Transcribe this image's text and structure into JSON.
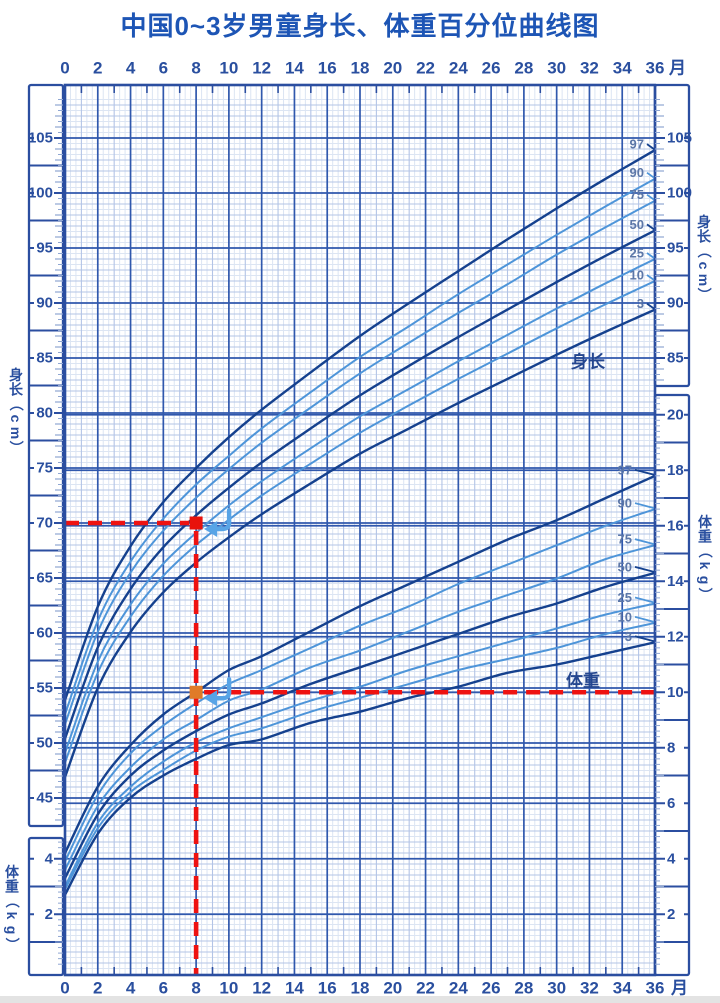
{
  "title": "中国0~3岁男童身长、体重百分位曲线图",
  "axes": {
    "month_ticks": [
      0,
      2,
      4,
      6,
      8,
      10,
      12,
      14,
      16,
      18,
      20,
      22,
      24,
      26,
      28,
      30,
      32,
      34,
      36
    ],
    "month_unit": "月",
    "left_height": {
      "title": "身长（cm）",
      "ticks": [
        105,
        100,
        95,
        90,
        85,
        80,
        75,
        70,
        65,
        60,
        55,
        50,
        45
      ]
    },
    "left_weight": {
      "title": "体重（kg）",
      "ticks": [
        4,
        2
      ]
    },
    "right_height": {
      "title": "身长（cm）",
      "ticks": [
        105,
        100,
        95,
        90,
        85
      ]
    },
    "right_weight": {
      "title": "体重（kg）",
      "ticks": [
        20,
        18,
        16,
        14,
        12,
        10,
        8,
        6,
        4,
        2
      ]
    }
  },
  "in_chart_labels": {
    "height": "身长",
    "weight": "体重"
  },
  "colors": {
    "title_blue": "#1d55b5",
    "axis_blue": "#2b4ea0",
    "label_blue": "#2a4f9f",
    "major_grid": "#3058ad",
    "medium_grid": "#b3c4e6",
    "fine_grid": "#dce5f3",
    "curve_dark": "#15418e",
    "curve_light": "#4e95d9",
    "percentile_label": "#5c77a8",
    "reference_red": "#ee1211",
    "marker_red": "#e8120c",
    "marker_orange": "#e07b28",
    "arrow_blue": "#58a4e6"
  },
  "chart_data": {
    "type": "line",
    "title": "中国0~3岁男童身长、体重百分位曲线图",
    "x_label_unit": "月",
    "x_range": [
      0,
      36
    ],
    "height_axis": {
      "label": "身长（cm）",
      "range": [
        45,
        105
      ],
      "major_step": 5
    },
    "weight_axis": {
      "label": "体重（kg）",
      "range": [
        2,
        20
      ],
      "major_step": 2
    },
    "grid": "on",
    "percentile_labels": [
      "97",
      "90",
      "75",
      "50",
      "25",
      "10",
      "3"
    ],
    "x_months": [
      0,
      2,
      4,
      6,
      8,
      10,
      12,
      15,
      18,
      21,
      24,
      27,
      30,
      33,
      36
    ],
    "height_series": [
      {
        "name": "97",
        "shade": "dark",
        "values": [
          53.9,
          62.4,
          67.9,
          71.9,
          75.0,
          77.8,
          80.3,
          83.7,
          87.0,
          90.0,
          92.9,
          95.8,
          98.6,
          101.3,
          103.9
        ]
      },
      {
        "name": "90",
        "shade": "light",
        "values": [
          52.6,
          61.1,
          66.5,
          70.4,
          73.5,
          76.1,
          78.6,
          81.9,
          85.1,
          87.9,
          90.8,
          93.5,
          96.2,
          98.8,
          101.3
        ]
      },
      {
        "name": "75",
        "shade": "light",
        "values": [
          51.7,
          60.1,
          65.5,
          69.3,
          72.3,
          74.9,
          77.3,
          80.5,
          83.6,
          86.4,
          89.1,
          91.7,
          94.4,
          96.9,
          99.3
        ]
      },
      {
        "name": "50",
        "shade": "dark",
        "values": [
          50.4,
          58.7,
          64.0,
          67.8,
          70.7,
          73.2,
          75.5,
          78.6,
          81.6,
          84.3,
          86.9,
          89.4,
          91.9,
          94.3,
          96.6
        ]
      },
      {
        "name": "25",
        "shade": "light",
        "values": [
          49.1,
          57.4,
          62.6,
          66.3,
          69.1,
          71.6,
          73.8,
          76.8,
          79.7,
          82.2,
          84.7,
          87.1,
          89.5,
          91.8,
          94.0
        ]
      },
      {
        "name": "10",
        "shade": "light",
        "values": [
          48.2,
          56.4,
          61.5,
          65.2,
          68.0,
          70.3,
          72.5,
          75.4,
          78.2,
          80.7,
          83.1,
          85.4,
          87.7,
          89.9,
          92.0
        ]
      },
      {
        "name": "3",
        "shade": "dark",
        "values": [
          46.9,
          55.0,
          60.1,
          63.7,
          66.4,
          68.7,
          70.8,
          73.6,
          76.3,
          78.6,
          80.9,
          83.1,
          85.3,
          87.4,
          89.4
        ]
      }
    ],
    "weight_series": [
      {
        "name": "97",
        "shade": "dark",
        "values": [
          4.2,
          6.6,
          8.1,
          9.2,
          10.0,
          10.8,
          11.3,
          12.2,
          13.1,
          13.9,
          14.7,
          15.5,
          16.2,
          17.0,
          17.8
        ]
      },
      {
        "name": "90",
        "shade": "light",
        "values": [
          3.9,
          6.3,
          7.8,
          8.8,
          9.6,
          10.3,
          10.8,
          11.6,
          12.4,
          13.1,
          13.9,
          14.6,
          15.3,
          16.0,
          16.6
        ]
      },
      {
        "name": "75",
        "shade": "light",
        "values": [
          3.6,
          5.9,
          7.3,
          8.3,
          9.0,
          9.7,
          10.1,
          10.9,
          11.5,
          12.2,
          12.9,
          13.5,
          14.1,
          14.8,
          15.3
        ]
      },
      {
        "name": "50",
        "shade": "dark",
        "values": [
          3.3,
          5.6,
          7.0,
          7.9,
          8.6,
          9.2,
          9.6,
          10.3,
          10.9,
          11.5,
          12.1,
          12.7,
          13.2,
          13.8,
          14.3
        ]
      },
      {
        "name": "25",
        "shade": "light",
        "values": [
          3.0,
          5.3,
          6.6,
          7.5,
          8.2,
          8.7,
          9.1,
          9.7,
          10.2,
          10.8,
          11.3,
          11.8,
          12.3,
          12.8,
          13.2
        ]
      },
      {
        "name": "10",
        "shade": "light",
        "values": [
          2.9,
          5.1,
          6.4,
          7.2,
          7.9,
          8.4,
          8.7,
          9.3,
          9.8,
          10.3,
          10.8,
          11.2,
          11.6,
          12.1,
          12.5
        ]
      },
      {
        "name": "3",
        "shade": "dark",
        "values": [
          2.7,
          4.9,
          6.2,
          7.0,
          7.6,
          8.1,
          8.3,
          8.9,
          9.3,
          9.8,
          10.2,
          10.7,
          11.0,
          11.4,
          11.8
        ]
      }
    ],
    "annotations": {
      "marked_month": 8,
      "marked_height_cm": 70,
      "marked_weight_kg": 10,
      "height_reference_line": "70 cm horizontal dashed to left axis",
      "weight_reference_line": "10 kg horizontal dashed to right axis",
      "vertical_reference_line": "8 months dashed to bottom axis"
    }
  }
}
